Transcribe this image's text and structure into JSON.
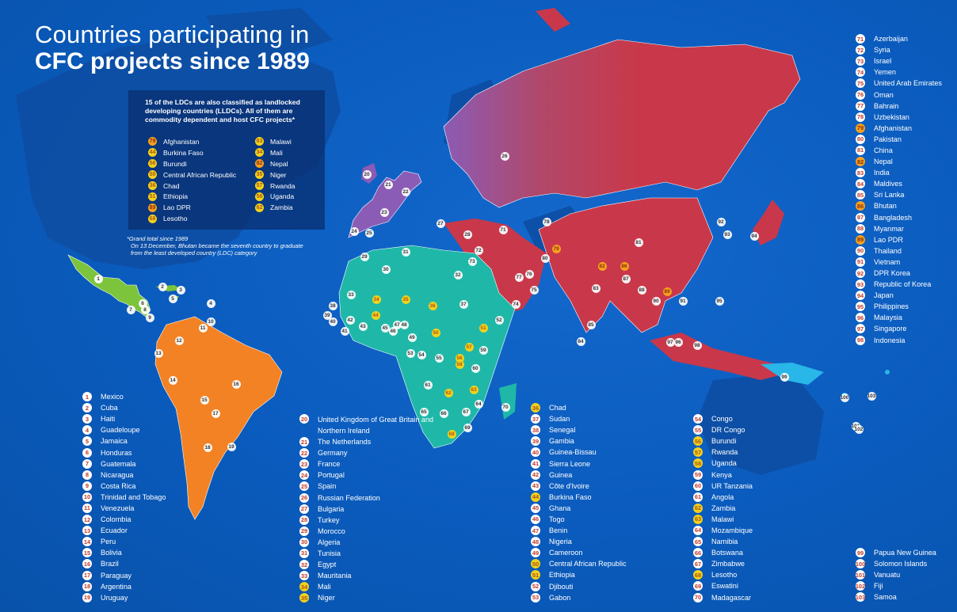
{
  "title": {
    "line1": "Countries participating in",
    "line2": "CFC projects since 1989"
  },
  "colors": {
    "ocean": "#0a5bbd",
    "americas_north": "#7cc43c",
    "americas_south": "#f28223",
    "europe": "#8b5cb5",
    "africa": "#1fb8a8",
    "asia": "#c9384a",
    "oceania": "#29b6e8",
    "badge_white": "#ffffff",
    "badge_yellow": "#f2d11c",
    "badge_orange": "#f5a020"
  },
  "ldc_box": {
    "heading": "15 of the LDCs are also classified as landlocked developing countries (LLDCs). All of them are commodity dependent and host CFC projects*",
    "left_col": [
      {
        "num": "79",
        "name": "Afghanistan",
        "badge": "orange"
      },
      {
        "num": "44",
        "name": "Burkina Faso",
        "badge": "yellow"
      },
      {
        "num": "56",
        "name": "Burundi",
        "badge": "yellow"
      },
      {
        "num": "50",
        "name": "Central African Republic",
        "badge": "yellow"
      },
      {
        "num": "36",
        "name": "Chad",
        "badge": "yellow"
      },
      {
        "num": "51",
        "name": "Ethiopia",
        "badge": "yellow"
      },
      {
        "num": "89",
        "name": "Lao DPR",
        "badge": "orange"
      },
      {
        "num": "68",
        "name": "Lesotho",
        "badge": "yellow"
      }
    ],
    "right_col": [
      {
        "num": "63",
        "name": "Malawi",
        "badge": "yellow"
      },
      {
        "num": "34",
        "name": "Mali",
        "badge": "yellow"
      },
      {
        "num": "82",
        "name": "Nepal",
        "badge": "orange"
      },
      {
        "num": "35",
        "name": "Niger",
        "badge": "yellow"
      },
      {
        "num": "57",
        "name": "Rwanda",
        "badge": "yellow"
      },
      {
        "num": "58",
        "name": "Uganda",
        "badge": "yellow"
      },
      {
        "num": "62",
        "name": "Zambia",
        "badge": "yellow"
      }
    ]
  },
  "footnote": {
    "line1": "*Grand total since 1989",
    "line2": "On 13 December, Bhutan became the seventh country to graduate",
    "line3": "from the least developed country (LDC) category"
  },
  "legend": {
    "americas": [
      {
        "num": "1",
        "name": "Mexico"
      },
      {
        "num": "2",
        "name": "Cuba"
      },
      {
        "num": "3",
        "name": "Haiti"
      },
      {
        "num": "4",
        "name": "Guadeloupe"
      },
      {
        "num": "5",
        "name": "Jamaica"
      },
      {
        "num": "6",
        "name": "Honduras"
      },
      {
        "num": "7",
        "name": "Guatemala"
      },
      {
        "num": "8",
        "name": "Nicaragua"
      },
      {
        "num": "9",
        "name": "Costa Rica"
      },
      {
        "num": "10",
        "name": "Trinidad and Tobago"
      },
      {
        "num": "11",
        "name": "Venezuela"
      },
      {
        "num": "12",
        "name": "Colombia"
      },
      {
        "num": "13",
        "name": "Ecuador"
      },
      {
        "num": "14",
        "name": "Peru"
      },
      {
        "num": "15",
        "name": "Bolivia"
      },
      {
        "num": "16",
        "name": "Brazil"
      },
      {
        "num": "17",
        "name": "Paraguay"
      },
      {
        "num": "18",
        "name": "Argentina"
      },
      {
        "num": "19",
        "name": "Uruguay"
      }
    ],
    "europe_mena": [
      {
        "num": "20",
        "name": "United Kingdom of Great Britain and Northern Ireland",
        "tall": true
      },
      {
        "num": "21",
        "name": "The Netherlands"
      },
      {
        "num": "22",
        "name": "Germany"
      },
      {
        "num": "23",
        "name": "France"
      },
      {
        "num": "24",
        "name": "Portugal"
      },
      {
        "num": "25",
        "name": "Spain"
      },
      {
        "num": "26",
        "name": "Russian Federation"
      },
      {
        "num": "27",
        "name": "Bulgaria"
      },
      {
        "num": "28",
        "name": "Turkey"
      },
      {
        "num": "29",
        "name": "Morocco"
      },
      {
        "num": "30",
        "name": "Algeria"
      },
      {
        "num": "31",
        "name": "Tunisia"
      },
      {
        "num": "32",
        "name": "Egypt"
      },
      {
        "num": "33",
        "name": "Mauritania"
      },
      {
        "num": "34",
        "name": "Mali",
        "badge": "yellow"
      },
      {
        "num": "35",
        "name": "Niger",
        "badge": "yellow"
      }
    ],
    "africa_1": [
      {
        "num": "36",
        "name": "Chad",
        "badge": "yellow"
      },
      {
        "num": "37",
        "name": "Sudan"
      },
      {
        "num": "38",
        "name": "Senegal"
      },
      {
        "num": "39",
        "name": "Gambia"
      },
      {
        "num": "40",
        "name": "Guinea-Bissau"
      },
      {
        "num": "41",
        "name": "Sierra Leone"
      },
      {
        "num": "42",
        "name": "Guinea"
      },
      {
        "num": "43",
        "name": "Côte d'Ivoire"
      },
      {
        "num": "44",
        "name": "Burkina Faso",
        "badge": "yellow"
      },
      {
        "num": "45",
        "name": "Ghana"
      },
      {
        "num": "46",
        "name": "Togo"
      },
      {
        "num": "47",
        "name": "Benin"
      },
      {
        "num": "48",
        "name": "Nigeria"
      },
      {
        "num": "49",
        "name": "Cameroon"
      },
      {
        "num": "50",
        "name": "Central African Republic",
        "badge": "yellow"
      },
      {
        "num": "51",
        "name": "Ethiopia",
        "badge": "yellow"
      },
      {
        "num": "52",
        "name": "Djibouti"
      },
      {
        "num": "53",
        "name": "Gabon"
      }
    ],
    "africa_2": [
      {
        "num": "54",
        "name": "Congo"
      },
      {
        "num": "55",
        "name": "DR Congo"
      },
      {
        "num": "56",
        "name": "Burundi",
        "badge": "yellow"
      },
      {
        "num": "57",
        "name": "Rwanda",
        "badge": "yellow"
      },
      {
        "num": "58",
        "name": "Uganda",
        "badge": "yellow"
      },
      {
        "num": "59",
        "name": "Kenya"
      },
      {
        "num": "60",
        "name": "UR Tanzania"
      },
      {
        "num": "61",
        "name": "Angola"
      },
      {
        "num": "62",
        "name": "Zambia",
        "badge": "yellow"
      },
      {
        "num": "63",
        "name": "Malawi",
        "badge": "yellow"
      },
      {
        "num": "64",
        "name": "Mozambique"
      },
      {
        "num": "65",
        "name": "Namibia"
      },
      {
        "num": "66",
        "name": "Botswana"
      },
      {
        "num": "67",
        "name": "Zimbabwe"
      },
      {
        "num": "68",
        "name": "Lesotho",
        "badge": "yellow"
      },
      {
        "num": "69",
        "name": "Eswatini"
      },
      {
        "num": "70",
        "name": "Madagascar"
      }
    ],
    "asia": [
      {
        "num": "71",
        "name": "Azerbaijan"
      },
      {
        "num": "72",
        "name": "Syria"
      },
      {
        "num": "73",
        "name": "Israel"
      },
      {
        "num": "74",
        "name": "Yemen"
      },
      {
        "num": "75",
        "name": "United Arab Emirates"
      },
      {
        "num": "76",
        "name": "Oman"
      },
      {
        "num": "77",
        "name": "Bahrain"
      },
      {
        "num": "78",
        "name": "Uzbekistan"
      },
      {
        "num": "79",
        "name": "Afghanistan",
        "badge": "orange"
      },
      {
        "num": "80",
        "name": "Pakistan"
      },
      {
        "num": "81",
        "name": "China"
      },
      {
        "num": "82",
        "name": "Nepal",
        "badge": "orange"
      },
      {
        "num": "83",
        "name": "India"
      },
      {
        "num": "84",
        "name": "Maldives"
      },
      {
        "num": "85",
        "name": "Sri Lanka"
      },
      {
        "num": "86",
        "name": "Bhutan",
        "badge": "orange"
      },
      {
        "num": "87",
        "name": "Bangladesh"
      },
      {
        "num": "88",
        "name": "Myanmar"
      },
      {
        "num": "89",
        "name": "Lao PDR",
        "badge": "orange"
      },
      {
        "num": "90",
        "name": "Thailand"
      },
      {
        "num": "91",
        "name": "Vietnam"
      },
      {
        "num": "92",
        "name": "DPR Korea"
      },
      {
        "num": "93",
        "name": "Republic of Korea"
      },
      {
        "num": "94",
        "name": "Japan"
      },
      {
        "num": "95",
        "name": "Philippines"
      },
      {
        "num": "96",
        "name": "Malaysia"
      },
      {
        "num": "97",
        "name": "Singapore"
      },
      {
        "num": "98",
        "name": "Indonesia"
      }
    ],
    "oceania": [
      {
        "num": "99",
        "name": "Papua New Guinea"
      },
      {
        "num": "100",
        "name": "Solomon Islands"
      },
      {
        "num": "101",
        "name": "Vanuatu"
      },
      {
        "num": "102",
        "name": "Fiji"
      },
      {
        "num": "103",
        "name": "Samoa"
      }
    ]
  }
}
